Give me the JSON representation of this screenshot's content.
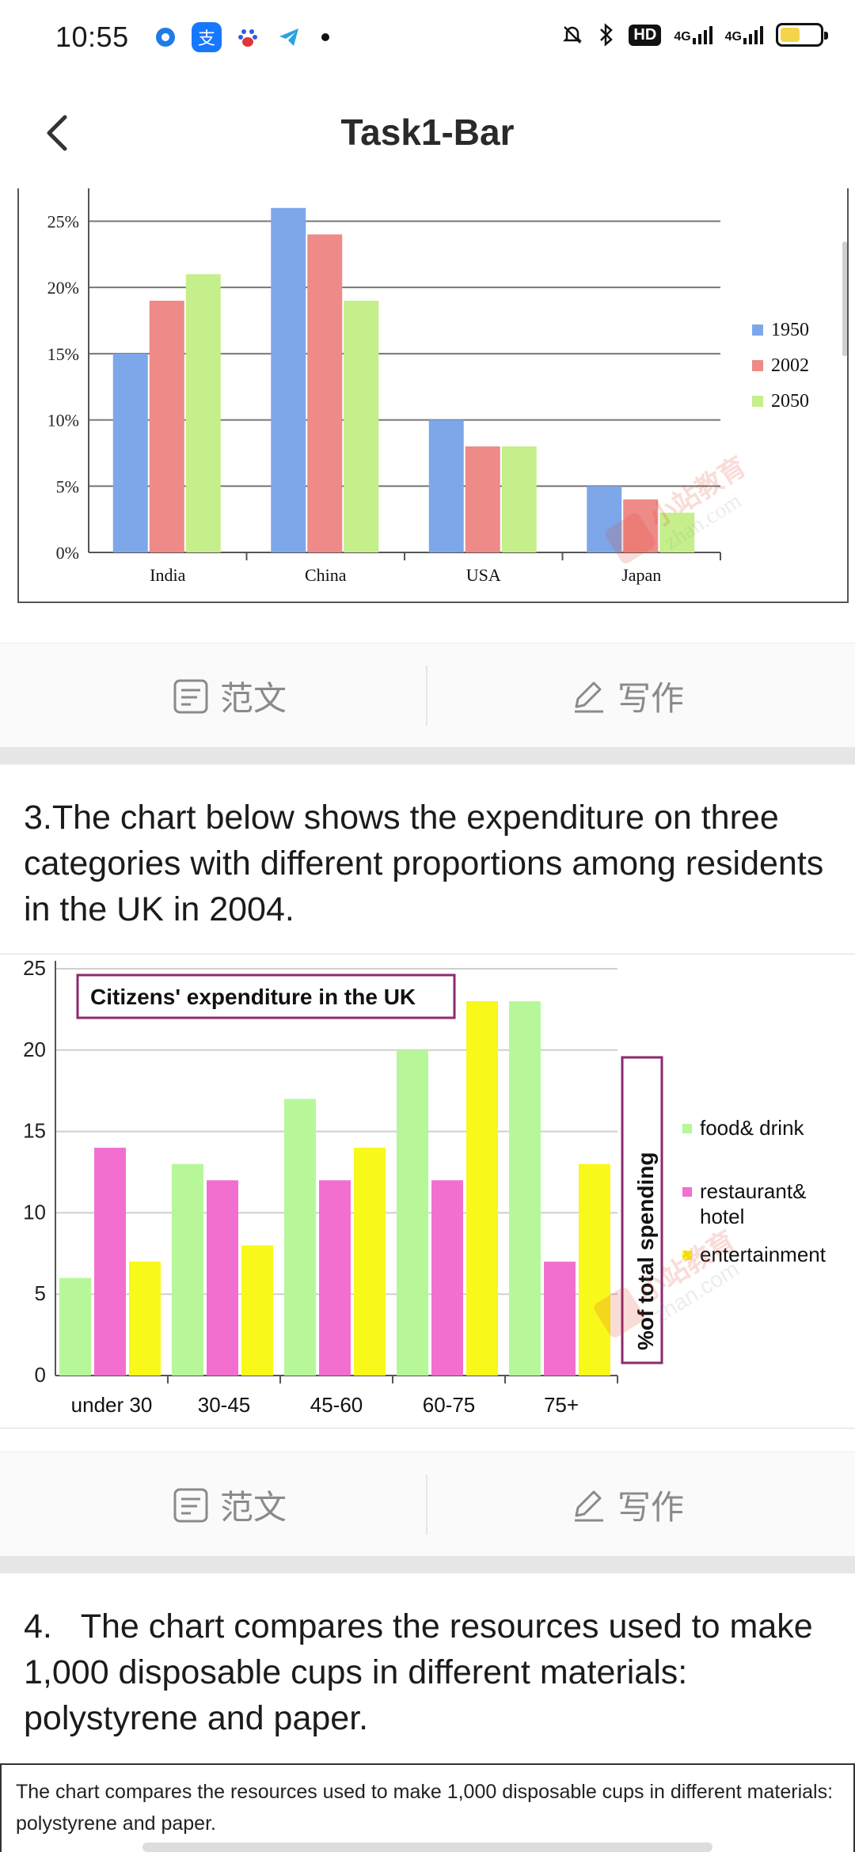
{
  "status": {
    "time": "10:55",
    "network_1": "4G",
    "network_2": "4G",
    "hd_label": "HD",
    "battery_level": 0.5
  },
  "header": {
    "title": "Task1-Bar"
  },
  "actions": {
    "sample_label": "范文",
    "write_label": "写作"
  },
  "sections": [
    {
      "text": "3.The chart below shows the expenditure on three categories with different proportions among residents in the UK in 2004."
    },
    {
      "text": "4.   The chart compares the resources used to make 1,000 disposable cups in different materials: polystyrene and paper."
    }
  ],
  "snippet": {
    "text": "The chart compares the resources used to make 1,000 disposable cups in different materials: polystyrene and paper."
  },
  "chart_data": [
    {
      "type": "bar",
      "categories": [
        "India",
        "China",
        "USA",
        "Japan"
      ],
      "series": [
        {
          "name": "1950",
          "values": [
            15,
            26,
            10,
            5
          ],
          "color": "#7ea7ea"
        },
        {
          "name": "2002",
          "values": [
            19,
            24,
            8,
            4
          ],
          "color": "#ee8a87"
        },
        {
          "name": "2050",
          "values": [
            21,
            19,
            8,
            3
          ],
          "color": "#c4ef8a"
        }
      ],
      "yticks": [
        "0%",
        "5%",
        "10%",
        "15%",
        "20%",
        "25%"
      ],
      "ylim": [
        0,
        27
      ],
      "legend": "right",
      "grid": true
    },
    {
      "type": "bar",
      "title": "Citizens' expenditure in the UK",
      "ylabel": "%of total spending",
      "categories": [
        "under 30",
        "30-45",
        "45-60",
        "60-75",
        "75+"
      ],
      "series": [
        {
          "name": "food& drink",
          "values": [
            6,
            13,
            17,
            20,
            23
          ],
          "color": "#b7f79a"
        },
        {
          "name": "restaurant& hotel",
          "values": [
            14,
            12,
            12,
            12,
            7
          ],
          "color": "#f26fd0"
        },
        {
          "name": "entertainment",
          "values": [
            7,
            8,
            14,
            23,
            13
          ],
          "color": "#f8f81a"
        }
      ],
      "yticks": [
        "0",
        "5",
        "10",
        "15",
        "20",
        "25"
      ],
      "ylim": [
        0,
        25
      ],
      "legend": "right",
      "grid": true
    }
  ]
}
